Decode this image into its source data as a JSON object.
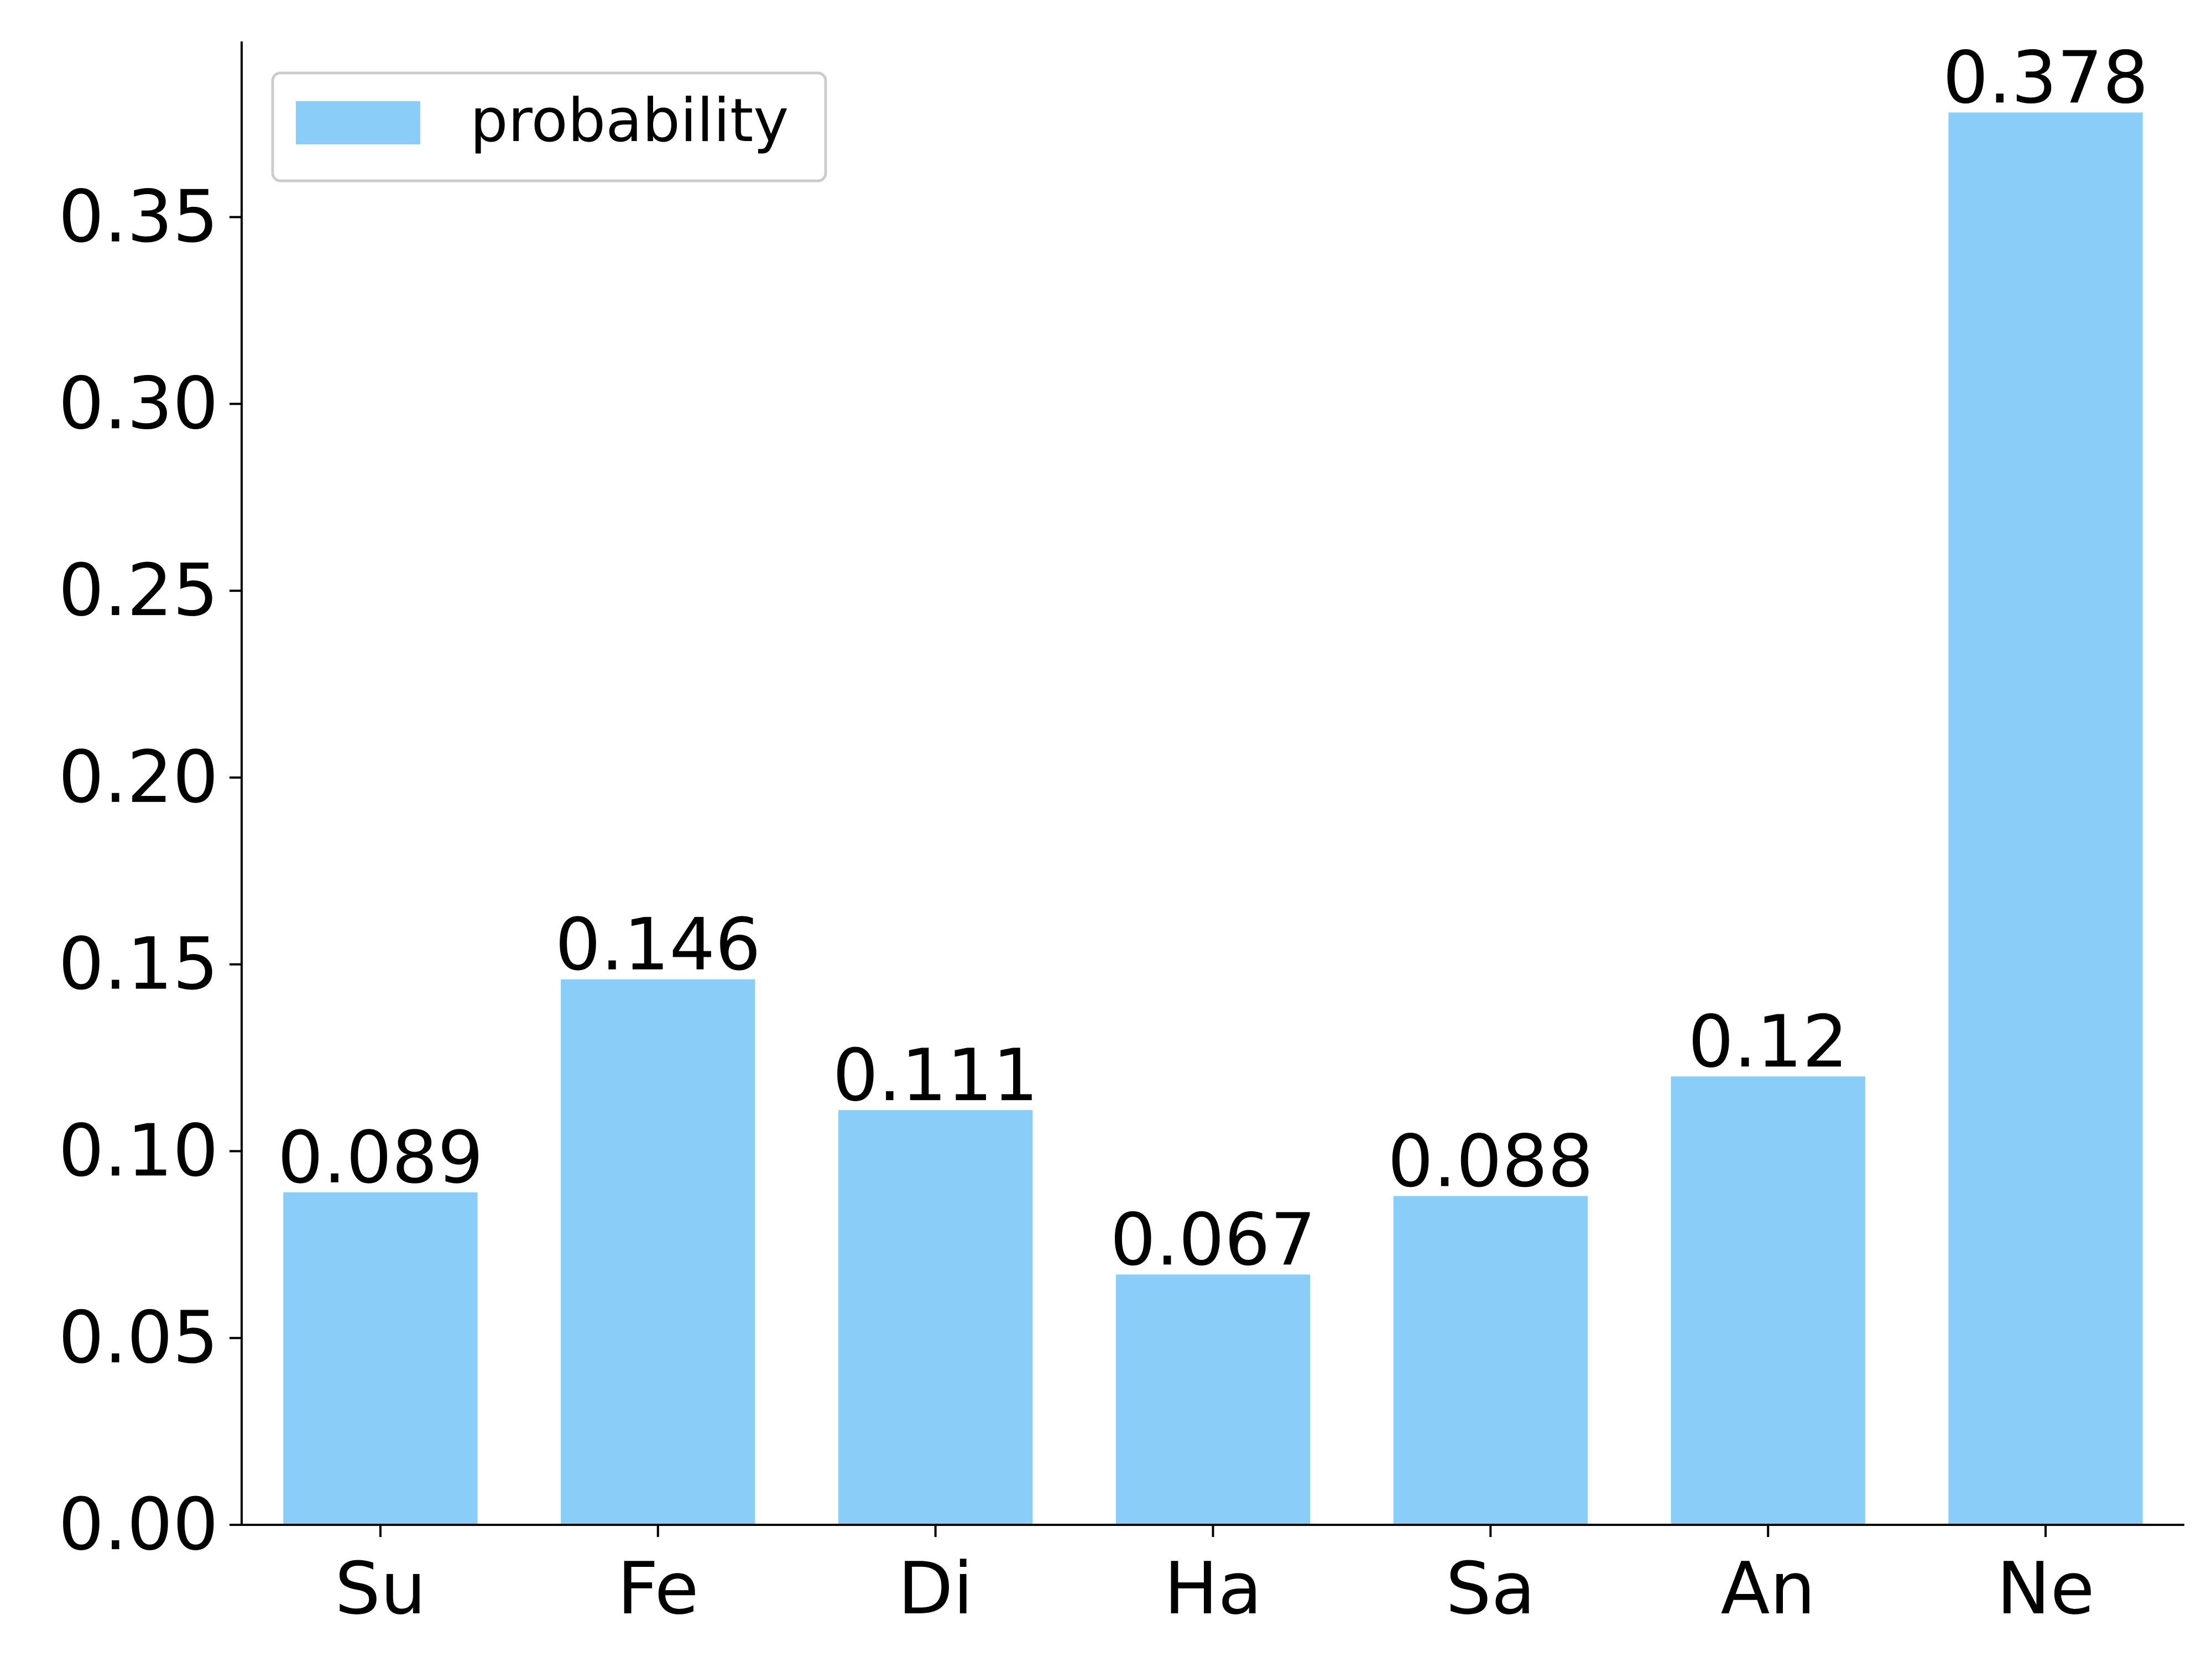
{
  "chart_data": {
    "type": "bar",
    "title": "",
    "xlabel": "",
    "ylabel": "",
    "categories": [
      "Su",
      "Fe",
      "Di",
      "Ha",
      "Sa",
      "An",
      "Ne"
    ],
    "series": [
      {
        "name": "probability",
        "values": [
          0.089,
          0.146,
          0.111,
          0.067,
          0.088,
          0.12,
          0.378
        ],
        "data_labels": [
          "0.089",
          "0.146",
          "0.111",
          "0.067",
          "0.088",
          "0.12",
          "0.378"
        ]
      }
    ],
    "ylim": [
      0,
      0.397
    ],
    "yticks": [
      0.0,
      0.05,
      0.1,
      0.15,
      0.2,
      0.25,
      0.3,
      0.35
    ],
    "ytick_labels": [
      "0.00",
      "0.05",
      "0.10",
      "0.15",
      "0.20",
      "0.25",
      "0.30",
      "0.35"
    ],
    "grid": false,
    "legend_position": "top-left",
    "bar_color": "#89CDF8",
    "axis_color": "#000000"
  }
}
